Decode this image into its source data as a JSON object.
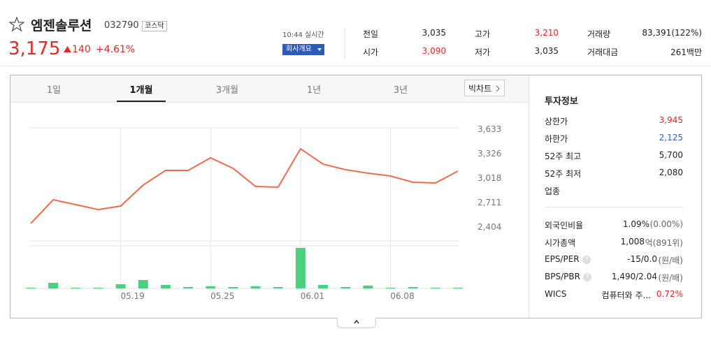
{
  "header": {
    "name": "엠젠솔루션",
    "code": "032790",
    "market": "코스닥",
    "price": "3,175",
    "change": "140",
    "change_rate": "+4.61%",
    "time": "10:44 실시간",
    "company_button": "회사개요",
    "up_color": "#e22926"
  },
  "quote": [
    {
      "label": "전일",
      "value": "3,035"
    },
    {
      "label": "고가",
      "value": "3,210",
      "color": "#e22926"
    },
    {
      "label": "거래량",
      "value": "83,391(122%)"
    },
    {
      "label": "시가",
      "value": "3,090",
      "color": "#e22926"
    },
    {
      "label": "저가",
      "value": "3,035"
    },
    {
      "label": "거래대금",
      "value": "261백만"
    }
  ],
  "tabs": {
    "items": [
      "1일",
      "1개월",
      "3개월",
      "1년",
      "3년"
    ],
    "active": 1,
    "big_chart": "빅차트"
  },
  "chart_data": {
    "type": "line",
    "categories": [
      null,
      null,
      null,
      null,
      "05.19",
      null,
      null,
      null,
      "05.25",
      null,
      null,
      null,
      "06.01",
      null,
      null,
      null,
      "06.08",
      null,
      null,
      null
    ],
    "series": [
      {
        "color": "#f26a4b",
        "values": [
          2448,
          2746,
          2685,
          2623,
          2667,
          2931,
          3115,
          3115,
          3273,
          3141,
          2913,
          2904,
          3387,
          3194,
          3124,
          3080,
          3045,
          2966,
          2957,
          3106
        ]
      },
      {
        "type": "bar",
        "color": "#4cd07d",
        "values": [
          1,
          8,
          1,
          1,
          6,
          12,
          5,
          2,
          3,
          2,
          3,
          2,
          58,
          5,
          2,
          4,
          1,
          2,
          1,
          1
        ]
      }
    ],
    "ylim": [
      2404,
      3633
    ],
    "yticks": [
      {
        "value": 3633,
        "label": "3,633"
      },
      {
        "value": 3326,
        "label": "3,326"
      },
      {
        "value": 3018,
        "label": "3,018"
      },
      {
        "value": 2711,
        "label": "2,711"
      },
      {
        "value": 2404,
        "label": "2,404"
      }
    ],
    "grid": true
  },
  "info": {
    "title": "투자정보",
    "rows1": [
      {
        "label": "상한가",
        "value": "3,945",
        "color": "#e22926"
      },
      {
        "label": "하한가",
        "value": "2,125",
        "color": "#3561c6"
      },
      {
        "label": "52주 최고",
        "value": "5,700"
      },
      {
        "label": "52주 최저",
        "value": "2,080"
      },
      {
        "label": "업종"
      }
    ],
    "rows2": [
      {
        "label": "외국인비율",
        "value": "1.09%",
        "note": "(0.00%)"
      },
      {
        "label": "시가총액",
        "value": "1,008",
        "note": "억(891위)"
      },
      {
        "label": "EPS/PER",
        "help": "?",
        "value": "-15/0.0",
        "note": "(원/배)"
      },
      {
        "label": "BPS/PBR",
        "help": "?",
        "value": "1,490/2.04",
        "note": "(원/배)"
      },
      {
        "label": "WICS",
        "value": "컴퓨터와 주...",
        "note": "0.72%",
        "note_color": "#e22926"
      }
    ]
  }
}
